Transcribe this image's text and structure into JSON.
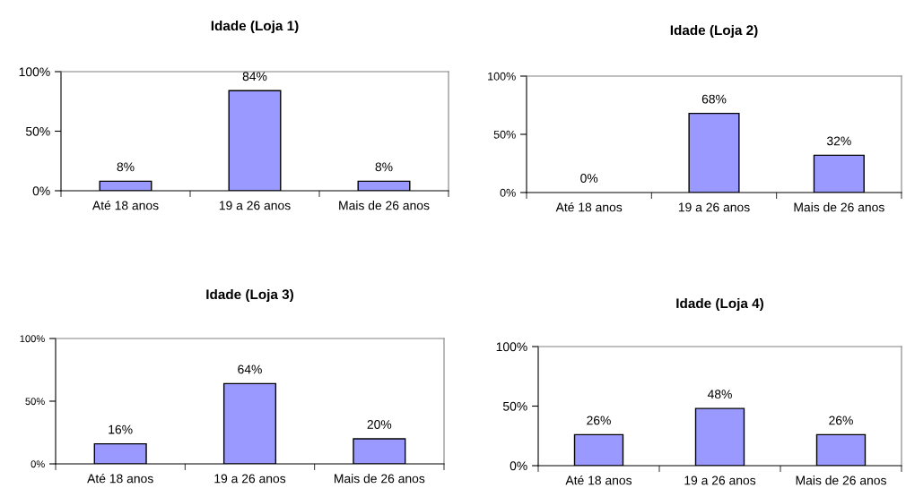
{
  "chart_data": [
    {
      "type": "bar",
      "title": "Idade (Loja 1)",
      "categories": [
        "Até 18 anos",
        "19 a 26 anos",
        "Mais de 26 anos"
      ],
      "values": [
        8,
        84,
        8
      ],
      "value_labels": [
        "8%",
        "84%",
        "8%"
      ],
      "color": "#9999ff",
      "ylim": [
        0,
        100
      ],
      "yticks": [
        {
          "value": 0,
          "label": "0%"
        },
        {
          "value": 50,
          "label": "50%"
        },
        {
          "value": 100,
          "label": "100%"
        }
      ],
      "grid": false
    },
    {
      "type": "bar",
      "title": "Idade (Loja 2)",
      "categories": [
        "Até 18 anos",
        "19 a 26 anos",
        "Mais de 26 anos"
      ],
      "values": [
        0,
        68,
        32
      ],
      "value_labels": [
        "0%",
        "68%",
        "32%"
      ],
      "color": "#9999ff",
      "ylim": [
        0,
        100
      ],
      "yticks": [
        {
          "value": 0,
          "label": "0%"
        },
        {
          "value": 50,
          "label": "50%"
        },
        {
          "value": 100,
          "label": "100%"
        }
      ],
      "grid": false
    },
    {
      "type": "bar",
      "title": "Idade (Loja 3)",
      "categories": [
        "Até 18 anos",
        "19 a 26 anos",
        "Mais de 26 anos"
      ],
      "values": [
        16,
        64,
        20
      ],
      "value_labels": [
        "16%",
        "64%",
        "20%"
      ],
      "color": "#9999ff",
      "ylim": [
        0,
        100
      ],
      "yticks": [
        {
          "value": 0,
          "label": "0%"
        },
        {
          "value": 50,
          "label": "50%"
        },
        {
          "value": 100,
          "label": "100%"
        }
      ],
      "grid": false
    },
    {
      "type": "bar",
      "title": "Idade (Loja 4)",
      "categories": [
        "Até 18 anos",
        "19 a 26 anos",
        "Mais de 26 anos"
      ],
      "values": [
        26,
        48,
        26
      ],
      "value_labels": [
        "26%",
        "48%",
        "26%"
      ],
      "color": "#9999ff",
      "ylim": [
        0,
        100
      ],
      "yticks": [
        {
          "value": 0,
          "label": "0%"
        },
        {
          "value": 50,
          "label": "50%"
        },
        {
          "value": 100,
          "label": "100%"
        }
      ],
      "grid": false
    }
  ]
}
